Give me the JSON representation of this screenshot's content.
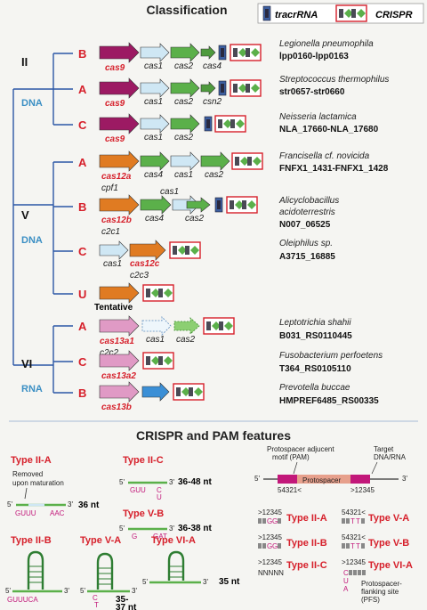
{
  "titles": {
    "classification": "Classification",
    "features": "CRISPR and PAM features"
  },
  "legend": {
    "tracr": "tracrRNA",
    "crispr": "CRISPR"
  },
  "classes": [
    {
      "label": "II",
      "molecule": "DNA"
    },
    {
      "label": "V",
      "molecule": "DNA"
    },
    {
      "label": "VI",
      "molecule": "RNA"
    }
  ],
  "loci": [
    {
      "type": "B",
      "effector": "cas9",
      "alt": "",
      "genes": [
        "cas1",
        "cas2",
        "cas4"
      ],
      "organism": "Legionella pneumophila",
      "locus": "lpp0160-lpp0163"
    },
    {
      "type": "A",
      "effector": "cas9",
      "alt": "",
      "genes": [
        "cas1",
        "cas2",
        "csn2"
      ],
      "organism": "Streptococcus thermophilus",
      "locus": "str0657-str0660"
    },
    {
      "type": "C",
      "effector": "cas9",
      "alt": "",
      "genes": [
        "cas1",
        "cas2"
      ],
      "organism": "Neisseria lactamica",
      "locus": "NLA_17660-NLA_17680"
    },
    {
      "type": "A",
      "effector": "cas12a",
      "alt": "cpf1",
      "genes": [
        "cas4",
        "cas1",
        "cas2"
      ],
      "organism": "Francisella cf. novicida",
      "locus": "FNFX1_1431-FNFX1_1428"
    },
    {
      "type": "B",
      "effector": "cas12b",
      "alt": "c2c1",
      "genes": [
        "cas4",
        "cas1",
        "cas2"
      ],
      "organism": "Alicyclobacillus acidoterrestris",
      "locus": "N007_06525"
    },
    {
      "type": "C",
      "effector": "cas12c",
      "alt": "c2c3",
      "genes": [
        "cas1"
      ],
      "organism": "Oleiphilus sp.",
      "locus": "A3715_16885"
    },
    {
      "type": "U",
      "effector": "",
      "alt": "",
      "note": "Tentative",
      "genes": [],
      "organism": "",
      "locus": ""
    },
    {
      "type": "A",
      "effector": "cas13a1",
      "alt": "c2c2",
      "genes": [
        "cas1",
        "cas2"
      ],
      "organism": "Leptotrichia shahii",
      "locus": "B031_RS0110445"
    },
    {
      "type": "C",
      "effector": "cas13a2",
      "alt": "",
      "genes": [],
      "organism": "Fusobacterium perfoetens",
      "locus": "T364_RS0105110"
    },
    {
      "type": "B",
      "effector": "cas13b",
      "alt": "",
      "genes": [],
      "organism": "Prevotella buccae",
      "locus": "HMPREF6485_RS00335"
    }
  ],
  "features": {
    "t2a": {
      "label": "Type II-A",
      "note1": "Removed",
      "note2": "upon maturation",
      "five": "5'",
      "three": "3'",
      "left": "GUUU",
      "right": "AAC",
      "len": "36 nt"
    },
    "t2c": {
      "label": "Type II-C",
      "five": "5'",
      "three": "3'",
      "left": "GUU",
      "c1": "C",
      "c2": "U",
      "len": "36-48 nt"
    },
    "t5b": {
      "label": "Type V-B",
      "five": "5'",
      "three": "3'",
      "left": "G",
      "right": "GAT",
      "len": "36-38 nt"
    },
    "t2b": {
      "label": "Type II-B",
      "five": "5'",
      "three": "3'",
      "seq": "GUUUCA"
    },
    "t5a": {
      "label": "Type V-A",
      "five": "5'",
      "three": "3'",
      "c": "C",
      "t": "T",
      "len1": "35-",
      "len2": "37 nt"
    },
    "t6a": {
      "label": "Type VI-A",
      "five": "5'",
      "three": "3'",
      "len": "35 nt"
    },
    "pam": {
      "label1": "Protospacer adjucent",
      "label2": "motif (PAM)",
      "target1": "Target",
      "target2": "DNA/RNA",
      "protospacer": "Protospacer",
      "five": "5'",
      "three": "3'",
      "left_nums": "54321<",
      "right_nums": ">12345",
      "rows": [
        {
          "lnum": ">12345",
          "ltype": "Type II-A",
          "rnum": "54321<",
          "rtype": "Type V-A"
        },
        {
          "lnum": ">12345",
          "ltype": "Type II-B",
          "rnum": "54321<",
          "rtype": "Type V-B"
        },
        {
          "lnum": ">12345",
          "ltype": "Type II-C",
          "lseq": "NNNNN",
          "rnum": ">12345",
          "rtype": "Type VI-A",
          "rnote1": "Protospacer-",
          "rnote2": "flanking site",
          "rnote3": "(PFS)",
          "pfs": [
            "C",
            "U",
            "A"
          ]
        }
      ],
      "codes": {
        "g": "G",
        "t": "T"
      }
    }
  },
  "colors": {
    "cas9": "#9c1a63",
    "cas12": "#e07b22",
    "cas13": "#e09ac5",
    "cas13b": "#3b8fd6",
    "cas1": "#cfe7f4",
    "cas2": "#5bb04a",
    "accent": "#d6202b"
  }
}
